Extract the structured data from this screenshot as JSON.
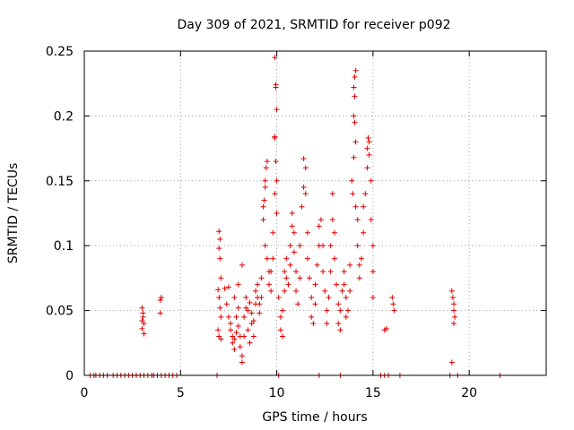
{
  "chart_data": {
    "type": "scatter",
    "title": "Day 309 of 2021, SRMTID for receiver p092",
    "xlabel": "GPS time / hours",
    "ylabel": "SRMTID / TECUs",
    "xlim": [
      0,
      24
    ],
    "ylim": [
      0,
      0.25
    ],
    "x_ticks": [
      0,
      5,
      10,
      15,
      20
    ],
    "x_tick_labels": [
      "0",
      "5",
      "10",
      "15",
      "20"
    ],
    "y_ticks": [
      0,
      0.05,
      0.1,
      0.15,
      0.2,
      0.25
    ],
    "y_tick_labels": [
      "0",
      "0.05",
      "0.1",
      "0.15",
      "0.2",
      "0.25"
    ],
    "grid": true,
    "marker": "+",
    "color": "#e00000",
    "series": [
      {
        "name": "SRMTID",
        "points": [
          [
            0.3,
            0
          ],
          [
            0.5,
            0
          ],
          [
            0.6,
            0
          ],
          [
            0.8,
            0
          ],
          [
            1.0,
            0
          ],
          [
            1.2,
            0
          ],
          [
            1.5,
            0
          ],
          [
            1.7,
            0
          ],
          [
            1.9,
            0
          ],
          [
            2.1,
            0
          ],
          [
            2.3,
            0
          ],
          [
            2.5,
            0
          ],
          [
            2.7,
            0
          ],
          [
            2.9,
            0
          ],
          [
            3.1,
            0
          ],
          [
            3.3,
            0
          ],
          [
            3.5,
            0
          ],
          [
            3.6,
            0
          ],
          [
            3.8,
            0
          ],
          [
            4.0,
            0
          ],
          [
            4.2,
            0
          ],
          [
            4.4,
            0
          ],
          [
            4.6,
            0
          ],
          [
            4.8,
            0
          ],
          [
            6.9,
            0
          ],
          [
            10.1,
            0
          ],
          [
            12.2,
            0
          ],
          [
            13.3,
            0
          ],
          [
            15.4,
            0
          ],
          [
            15.6,
            0
          ],
          [
            15.8,
            0
          ],
          [
            16.4,
            0
          ],
          [
            19.0,
            0
          ],
          [
            19.4,
            0
          ],
          [
            21.6,
            0
          ],
          [
            3.0,
            0.052
          ],
          [
            3.05,
            0.045
          ],
          [
            3.1,
            0.04
          ],
          [
            3.0,
            0.036
          ],
          [
            3.1,
            0.032
          ],
          [
            3.05,
            0.048
          ],
          [
            3.0,
            0.042
          ],
          [
            3.95,
            0.058
          ],
          [
            4.0,
            0.06
          ],
          [
            3.95,
            0.048
          ],
          [
            7.0,
            0.111
          ],
          [
            7.05,
            0.105
          ],
          [
            7.0,
            0.098
          ],
          [
            7.05,
            0.09
          ],
          [
            7.1,
            0.075
          ],
          [
            6.95,
            0.066
          ],
          [
            7.0,
            0.06
          ],
          [
            7.05,
            0.052
          ],
          [
            7.1,
            0.045
          ],
          [
            6.95,
            0.035
          ],
          [
            7.0,
            0.03
          ],
          [
            7.1,
            0.028
          ],
          [
            7.3,
            0.067
          ],
          [
            7.4,
            0.055
          ],
          [
            7.5,
            0.045
          ],
          [
            7.6,
            0.04
          ],
          [
            7.6,
            0.035
          ],
          [
            7.7,
            0.03
          ],
          [
            7.7,
            0.025
          ],
          [
            7.8,
            0.02
          ],
          [
            7.8,
            0.028
          ],
          [
            7.9,
            0.033
          ],
          [
            7.9,
            0.045
          ],
          [
            8.0,
            0.052
          ],
          [
            8.0,
            0.038
          ],
          [
            8.1,
            0.03
          ],
          [
            8.1,
            0.022
          ],
          [
            8.2,
            0.015
          ],
          [
            8.2,
            0.01
          ],
          [
            8.3,
            0.03
          ],
          [
            8.3,
            0.045
          ],
          [
            8.4,
            0.06
          ],
          [
            8.4,
            0.052
          ],
          [
            8.5,
            0.05
          ],
          [
            8.6,
            0.056
          ],
          [
            8.7,
            0.048
          ],
          [
            8.7,
            0.04
          ],
          [
            8.8,
            0.042
          ],
          [
            8.9,
            0.055
          ],
          [
            8.9,
            0.065
          ],
          [
            9.0,
            0.07
          ],
          [
            9.0,
            0.06
          ],
          [
            9.1,
            0.055
          ],
          [
            9.1,
            0.048
          ],
          [
            9.2,
            0.06
          ],
          [
            9.2,
            0.075
          ],
          [
            8.2,
            0.085
          ],
          [
            8.0,
            0.07
          ],
          [
            7.8,
            0.06
          ],
          [
            7.5,
            0.068
          ],
          [
            8.5,
            0.035
          ],
          [
            8.6,
            0.025
          ],
          [
            8.8,
            0.03
          ],
          [
            9.3,
            0.13
          ],
          [
            9.35,
            0.135
          ],
          [
            9.4,
            0.15
          ],
          [
            9.45,
            0.16
          ],
          [
            9.5,
            0.165
          ],
          [
            9.4,
            0.145
          ],
          [
            9.3,
            0.12
          ],
          [
            9.4,
            0.1
          ],
          [
            9.5,
            0.09
          ],
          [
            9.6,
            0.08
          ],
          [
            9.6,
            0.07
          ],
          [
            9.7,
            0.065
          ],
          [
            9.7,
            0.08
          ],
          [
            9.8,
            0.09
          ],
          [
            9.8,
            0.11
          ],
          [
            9.9,
            0.14
          ],
          [
            9.9,
            0.183
          ],
          [
            9.95,
            0.165
          ],
          [
            10.0,
            0.15
          ],
          [
            10.0,
            0.125
          ],
          [
            9.9,
            0.184
          ],
          [
            9.9,
            0.245
          ],
          [
            9.95,
            0.222
          ],
          [
            9.95,
            0.224
          ],
          [
            10.0,
            0.205
          ],
          [
            10.1,
            0.06
          ],
          [
            10.2,
            0.045
          ],
          [
            10.2,
            0.035
          ],
          [
            10.3,
            0.03
          ],
          [
            10.3,
            0.05
          ],
          [
            10.4,
            0.065
          ],
          [
            10.4,
            0.08
          ],
          [
            10.5,
            0.09
          ],
          [
            10.5,
            0.075
          ],
          [
            10.6,
            0.07
          ],
          [
            10.7,
            0.085
          ],
          [
            10.7,
            0.1
          ],
          [
            10.8,
            0.115
          ],
          [
            10.8,
            0.125
          ],
          [
            10.9,
            0.11
          ],
          [
            10.9,
            0.095
          ],
          [
            11.0,
            0.08
          ],
          [
            11.0,
            0.065
          ],
          [
            11.1,
            0.055
          ],
          [
            11.2,
            0.075
          ],
          [
            11.2,
            0.1
          ],
          [
            11.3,
            0.13
          ],
          [
            11.4,
            0.145
          ],
          [
            11.4,
            0.167
          ],
          [
            11.5,
            0.16
          ],
          [
            11.5,
            0.14
          ],
          [
            11.6,
            0.11
          ],
          [
            11.6,
            0.09
          ],
          [
            11.7,
            0.075
          ],
          [
            11.8,
            0.06
          ],
          [
            11.8,
            0.045
          ],
          [
            11.9,
            0.04
          ],
          [
            12.0,
            0.055
          ],
          [
            12.0,
            0.07
          ],
          [
            12.1,
            0.085
          ],
          [
            12.2,
            0.1
          ],
          [
            12.2,
            0.115
          ],
          [
            12.3,
            0.12
          ],
          [
            12.4,
            0.1
          ],
          [
            12.4,
            0.08
          ],
          [
            12.5,
            0.065
          ],
          [
            12.6,
            0.05
          ],
          [
            12.6,
            0.04
          ],
          [
            12.7,
            0.06
          ],
          [
            12.8,
            0.08
          ],
          [
            12.8,
            0.1
          ],
          [
            12.9,
            0.12
          ],
          [
            12.9,
            0.14
          ],
          [
            13.0,
            0.11
          ],
          [
            13.0,
            0.09
          ],
          [
            13.1,
            0.07
          ],
          [
            13.2,
            0.055
          ],
          [
            13.2,
            0.04
          ],
          [
            13.3,
            0.035
          ],
          [
            13.3,
            0.05
          ],
          [
            13.4,
            0.065
          ],
          [
            13.5,
            0.07
          ],
          [
            13.5,
            0.08
          ],
          [
            13.6,
            0.06
          ],
          [
            13.6,
            0.045
          ],
          [
            13.7,
            0.05
          ],
          [
            13.8,
            0.065
          ],
          [
            13.8,
            0.085
          ],
          [
            13.9,
            0.15
          ],
          [
            13.95,
            0.14
          ],
          [
            14.0,
            0.2
          ],
          [
            14.05,
            0.195
          ],
          [
            14.1,
            0.18
          ],
          [
            14.0,
            0.168
          ],
          [
            14.1,
            0.13
          ],
          [
            14.2,
            0.12
          ],
          [
            14.2,
            0.1
          ],
          [
            14.3,
            0.085
          ],
          [
            14.3,
            0.075
          ],
          [
            14.4,
            0.09
          ],
          [
            14.5,
            0.11
          ],
          [
            14.5,
            0.13
          ],
          [
            14.6,
            0.14
          ],
          [
            14.7,
            0.16
          ],
          [
            14.7,
            0.175
          ],
          [
            14.8,
            0.18
          ],
          [
            14.8,
            0.17
          ],
          [
            14.9,
            0.15
          ],
          [
            14.9,
            0.12
          ],
          [
            15.0,
            0.1
          ],
          [
            15.0,
            0.08
          ],
          [
            15.0,
            0.06
          ],
          [
            14.05,
            0.23
          ],
          [
            14.1,
            0.235
          ],
          [
            14.0,
            0.222
          ],
          [
            14.05,
            0.215
          ],
          [
            14.75,
            0.183
          ],
          [
            15.6,
            0.035
          ],
          [
            15.7,
            0.036
          ],
          [
            16.0,
            0.06
          ],
          [
            16.05,
            0.055
          ],
          [
            16.1,
            0.05
          ],
          [
            19.1,
            0.065
          ],
          [
            19.15,
            0.06
          ],
          [
            19.2,
            0.055
          ],
          [
            19.2,
            0.05
          ],
          [
            19.25,
            0.045
          ],
          [
            19.2,
            0.04
          ],
          [
            19.1,
            0.01
          ]
        ]
      }
    ]
  }
}
